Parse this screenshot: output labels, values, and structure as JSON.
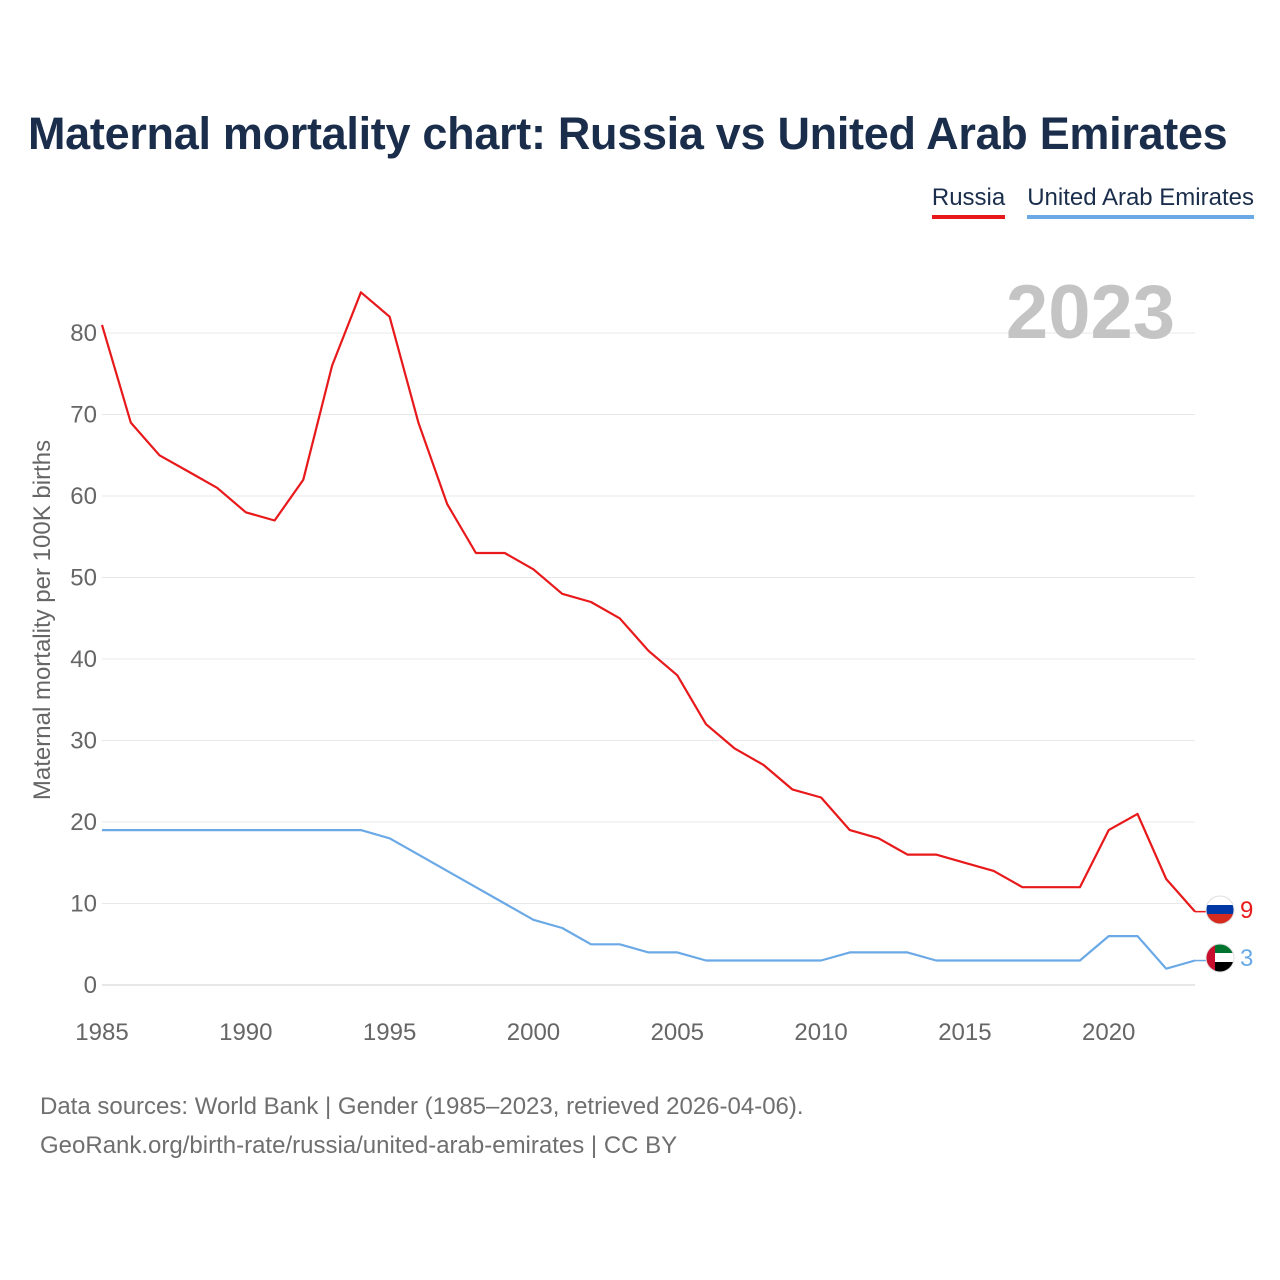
{
  "title": "Maternal mortality chart: Russia vs United Arab Emirates",
  "legend": [
    {
      "name": "Russia",
      "color": "#e8191b"
    },
    {
      "name": "United Arab Emirates",
      "color": "#6aa9e6"
    }
  ],
  "current_year": "2023",
  "source_line1": "Data sources: World Bank | Gender (1985–2023, retrieved 2026-04-06).",
  "source_line2": "GeoRank.org/birth-rate/russia/united-arab-emirates | CC BY",
  "chart_data": {
    "type": "line",
    "title": "Maternal mortality chart: Russia vs United Arab Emirates",
    "xlabel": "",
    "ylabel": "Maternal mortality per 100K births",
    "xlim": [
      1985,
      2023
    ],
    "ylim": [
      0,
      85
    ],
    "x_ticks": [
      1985,
      1990,
      1995,
      2000,
      2005,
      2010,
      2015,
      2020
    ],
    "y_ticks": [
      0,
      10,
      20,
      30,
      40,
      50,
      60,
      70,
      80
    ],
    "x": [
      1985,
      1986,
      1987,
      1988,
      1989,
      1990,
      1991,
      1992,
      1993,
      1994,
      1995,
      1996,
      1997,
      1998,
      1999,
      2000,
      2001,
      2002,
      2003,
      2004,
      2005,
      2006,
      2007,
      2008,
      2009,
      2010,
      2011,
      2012,
      2013,
      2014,
      2015,
      2016,
      2017,
      2018,
      2019,
      2020,
      2021,
      2022,
      2023
    ],
    "series": [
      {
        "name": "Russia",
        "color": "#e8191b",
        "end_label": "9",
        "values": [
          81,
          69,
          65,
          63,
          61,
          58,
          57,
          62,
          76,
          85,
          82,
          69,
          59,
          53,
          53,
          51,
          48,
          47,
          45,
          41,
          38,
          32,
          29,
          27,
          24,
          23,
          19,
          18,
          16,
          16,
          15,
          14,
          12,
          12,
          12,
          19,
          21,
          13,
          9
        ]
      },
      {
        "name": "United Arab Emirates",
        "color": "#6aa9e6",
        "end_label": "3",
        "values": [
          19,
          19,
          19,
          19,
          19,
          19,
          19,
          19,
          19,
          19,
          18,
          16,
          14,
          12,
          10,
          8,
          7,
          5,
          5,
          4,
          4,
          3,
          3,
          3,
          3,
          3,
          4,
          4,
          4,
          3,
          3,
          3,
          3,
          3,
          3,
          6,
          6,
          2,
          3
        ]
      }
    ]
  }
}
